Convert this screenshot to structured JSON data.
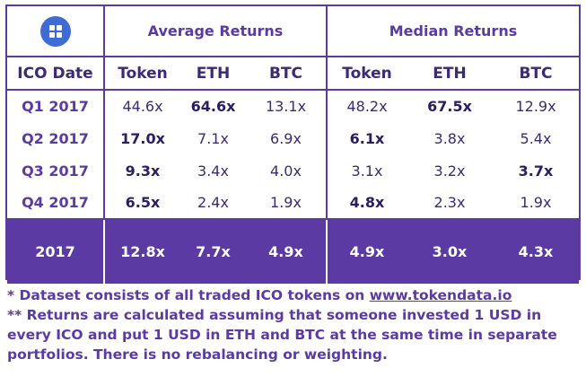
{
  "chart_data": {
    "type": "table",
    "column_groups": [
      "Average Returns",
      "Median Returns"
    ],
    "row_header": "ICO Date",
    "sub_columns": [
      "Token",
      "ETH",
      "BTC",
      "Token",
      "ETH",
      "BTC"
    ],
    "rows": [
      {
        "label": "Q1 2017",
        "values": [
          "44.6x",
          "64.6x",
          "13.1x",
          "48.2x",
          "67.5x",
          "12.9x"
        ],
        "bold": [
          false,
          true,
          false,
          false,
          true,
          false
        ]
      },
      {
        "label": "Q2 2017",
        "values": [
          "17.0x",
          "7.1x",
          "6.9x",
          "6.1x",
          "3.8x",
          "5.4x"
        ],
        "bold": [
          true,
          false,
          false,
          true,
          false,
          false
        ]
      },
      {
        "label": "Q3 2017",
        "values": [
          "9.3x",
          "3.4x",
          "4.0x",
          "3.1x",
          "3.2x",
          "3.7x"
        ],
        "bold": [
          true,
          false,
          false,
          false,
          false,
          true
        ]
      },
      {
        "label": "Q4 2017",
        "values": [
          "6.5x",
          "2.4x",
          "1.9x",
          "4.8x",
          "2.3x",
          "1.9x"
        ],
        "bold": [
          true,
          false,
          false,
          true,
          false,
          false
        ]
      }
    ],
    "total": {
      "label": "2017",
      "values": [
        "12.8x",
        "7.7x",
        "4.9x",
        "4.9x",
        "3.0x",
        "4.3x"
      ]
    }
  },
  "footnotes": {
    "note1_prefix": "* Dataset consists of all traded ICO tokens on ",
    "note1_link": "www.tokendata.io",
    "note2": "** Returns are calculated assuming that someone invested 1 USD in every ICO and put 1 USD in ETH and BTC at the same time in separate portfolios. There is no rebalancing or weighting."
  },
  "logo": {
    "icon": "grid-logo-icon"
  }
}
